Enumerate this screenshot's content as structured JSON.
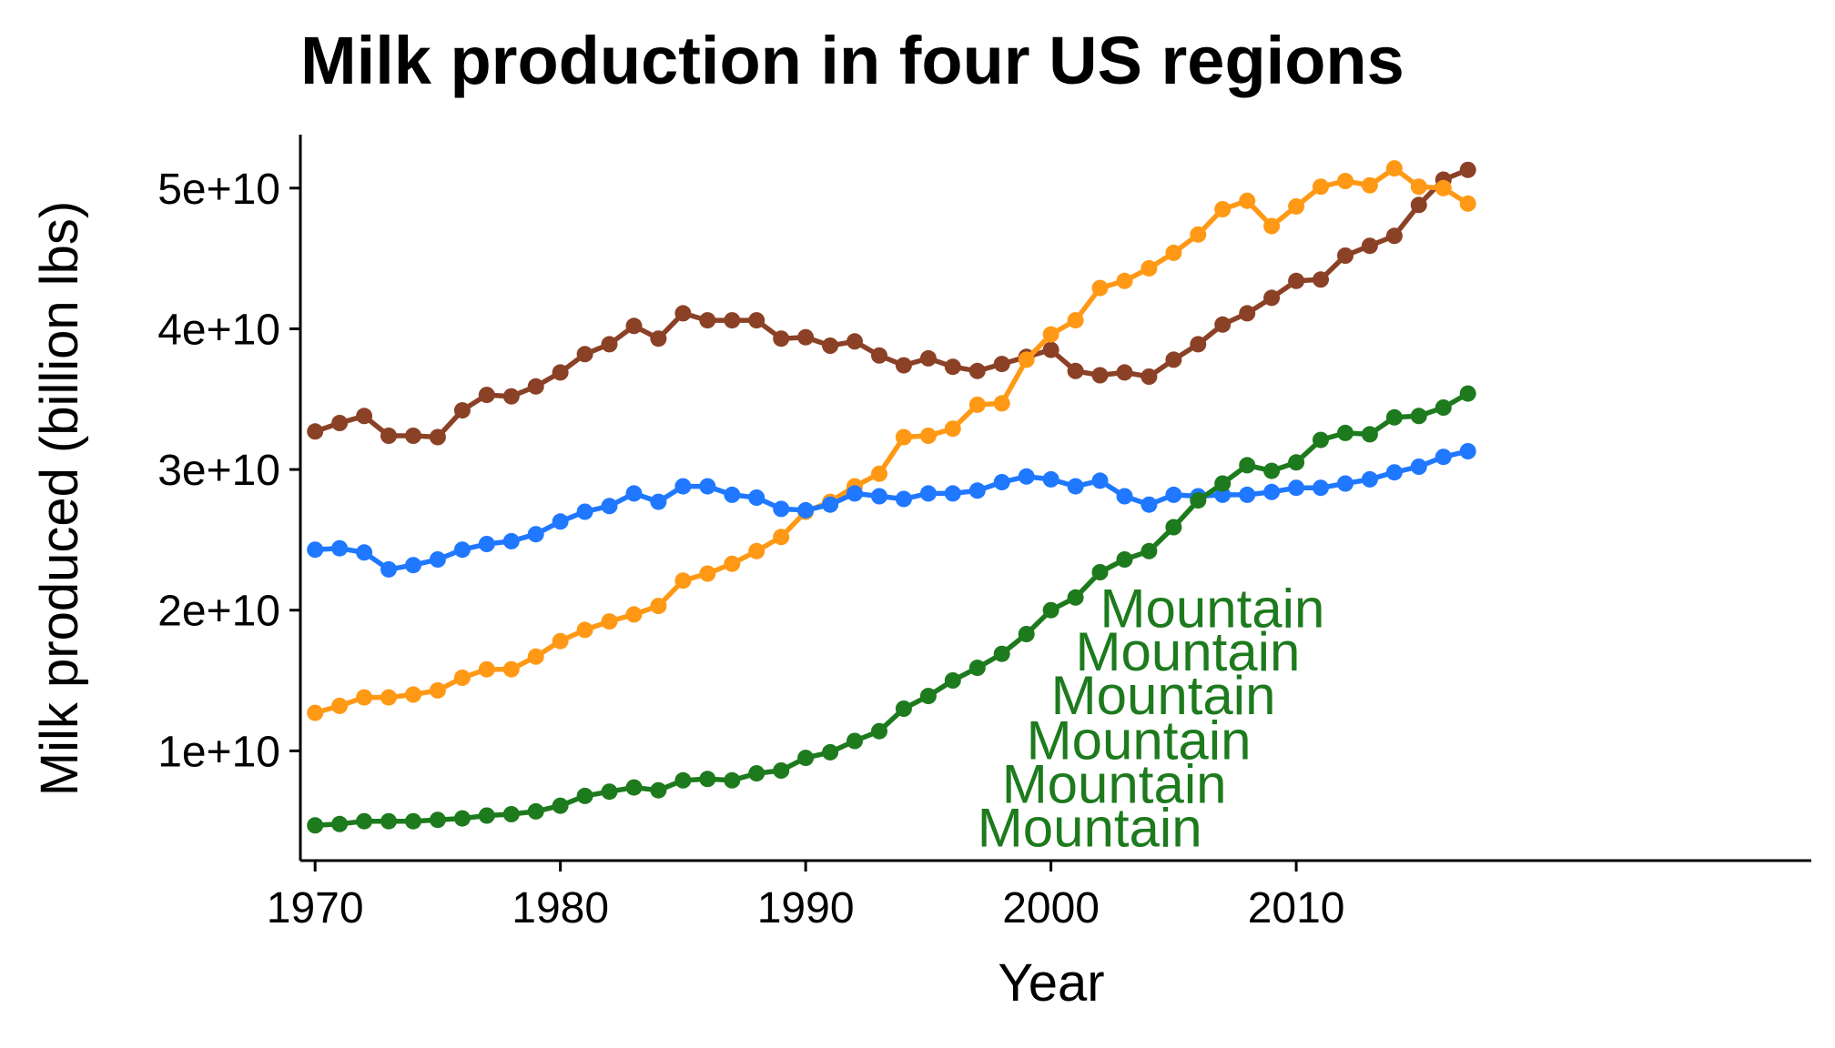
{
  "chart_data": {
    "type": "line",
    "title": "Milk production in four US regions",
    "xlabel": "Year",
    "ylabel": "Milk produced (billion lbs)",
    "xlim": [
      1969.4,
      2031
    ],
    "ylim": [
      2200000000,
      53800000000
    ],
    "x_ticks": [
      1970,
      1980,
      1990,
      2000,
      2010
    ],
    "x_tick_labels": [
      "1970",
      "1980",
      "1990",
      "2000",
      "2010"
    ],
    "y_ticks": [
      10000000000,
      20000000000,
      30000000000,
      40000000000,
      50000000000
    ],
    "y_tick_labels": [
      "1e+10",
      "2e+10",
      "3e+10",
      "4e+10",
      "5e+10"
    ],
    "grid": false,
    "legend": "none",
    "x": [
      1970,
      1971,
      1972,
      1973,
      1974,
      1975,
      1976,
      1977,
      1978,
      1979,
      1980,
      1981,
      1982,
      1983,
      1984,
      1985,
      1986,
      1987,
      1988,
      1989,
      1990,
      1991,
      1992,
      1993,
      1994,
      1995,
      1996,
      1997,
      1998,
      1999,
      2000,
      2001,
      2002,
      2003,
      2004,
      2005,
      2006,
      2007,
      2008,
      2009,
      2010,
      2011,
      2012,
      2013,
      2014,
      2015,
      2016,
      2017
    ],
    "series": [
      {
        "color": "#8B4126",
        "values": [
          32700000000.0,
          33300000000.0,
          33800000000.0,
          32400000000.0,
          32400000000.0,
          32300000000.0,
          34200000000.0,
          35300000000.0,
          35200000000.0,
          35900000000.0,
          36900000000.0,
          38200000000.0,
          38900000000.0,
          40200000000.0,
          39300000000.0,
          41100000000.0,
          40600000000.0,
          40600000000.0,
          40600000000.0,
          39300000000.0,
          39400000000.0,
          38800000000.0,
          39100000000.0,
          38100000000.0,
          37400000000.0,
          37900000000.0,
          37300000000.0,
          37000000000.0,
          37500000000.0,
          38000000000.0,
          38500000000.0,
          37000000000.0,
          36700000000.0,
          36900000000.0,
          36600000000.0,
          37800000000.0,
          38900000000.0,
          40300000000.0,
          41100000000.0,
          42200000000.0,
          43400000000.0,
          43500000000.0,
          45200000000.0,
          45900000000.0,
          46600000000.0,
          48800000000.0,
          50600000000.0,
          51300000000.0
        ]
      },
      {
        "color": "#FF9915",
        "values": [
          12700000000.0,
          13200000000.0,
          13800000000.0,
          13800000000.0,
          14000000000.0,
          14300000000.0,
          15200000000.0,
          15800000000.0,
          15800000000.0,
          16700000000.0,
          17800000000.0,
          18600000000.0,
          19200000000.0,
          19700000000.0,
          20300000000.0,
          22100000000.0,
          22600000000.0,
          23300000000.0,
          24200000000.0,
          25200000000.0,
          27000000000.0,
          27700000000.0,
          28800000000.0,
          29700000000.0,
          32300000000.0,
          32400000000.0,
          32900000000.0,
          34600000000.0,
          34700000000.0,
          37800000000.0,
          39600000000.0,
          40600000000.0,
          42900000000.0,
          43400000000.0,
          44300000000.0,
          45400000000.0,
          46700000000.0,
          48500000000.0,
          49100000000.0,
          47300000000.0,
          48700000000.0,
          50100000000.0,
          50500000000.0,
          50200000000.0,
          51400000000.0,
          50100000000.0,
          50000000000.0,
          48900000000.0
        ]
      },
      {
        "color": "#1F78FF",
        "values": [
          24300000000.0,
          24400000000.0,
          24100000000.0,
          22900000000.0,
          23200000000.0,
          23600000000.0,
          24300000000.0,
          24700000000.0,
          24900000000.0,
          25400000000.0,
          26300000000.0,
          27000000000.0,
          27400000000.0,
          28300000000.0,
          27700000000.0,
          28800000000.0,
          28800000000.0,
          28200000000.0,
          28000000000.0,
          27200000000.0,
          27100000000.0,
          27500000000.0,
          28300000000.0,
          28100000000.0,
          27900000000.0,
          28300000000.0,
          28300000000.0,
          28500000000.0,
          29100000000.0,
          29500000000.0,
          29300000000.0,
          28800000000.0,
          29200000000.0,
          28100000000.0,
          27500000000.0,
          28200000000.0,
          28100000000.0,
          28200000000.0,
          28200000000.0,
          28400000000.0,
          28700000000.0,
          28700000000.0,
          29000000000.0,
          29300000000.0,
          29800000000.0,
          30200000000.0,
          30900000000.0,
          31300000000.0
        ]
      },
      {
        "color": "#1D7A1D",
        "values": [
          4700000000.0,
          4800000000.0,
          5000000000.0,
          5000000000.0,
          5000000000.0,
          5100000000.0,
          5200000000.0,
          5400000000.0,
          5500000000.0,
          5700000000.0,
          6100000000.0,
          6800000000.0,
          7100000000.0,
          7400000000.0,
          7200000000.0,
          7900000000.0,
          8000000000.0,
          7900000000.0,
          8400000000.0,
          8600000000.0,
          9500000000.0,
          9900000000.0,
          10700000000.0,
          11400000000.0,
          13000000000.0,
          13900000000.0,
          15000000000.0,
          15900000000.0,
          16900000000.0,
          18300000000.0,
          20000000000.0,
          20900000000.0,
          22700000000.0,
          23600000000.0,
          24200000000.0,
          25900000000.0,
          27800000000.0,
          29000000000.0,
          30300000000.0,
          29900000000.0,
          30500000000.0,
          32100000000.0,
          32600000000.0,
          32500000000.0,
          33700000000.0,
          33800000000.0,
          34400000000.0,
          35400000000.0
        ]
      }
    ],
    "annotations": [
      {
        "text": "Mountain",
        "x": 1997,
        "y": 3200000000.0,
        "color": "#1D7A1D"
      },
      {
        "text": "Mountain",
        "x": 1998,
        "y": 6300000000.0,
        "color": "#1D7A1D"
      },
      {
        "text": "Mountain",
        "x": 1999,
        "y": 9400000000.0,
        "color": "#1D7A1D"
      },
      {
        "text": "Mountain",
        "x": 2000,
        "y": 12600000000.0,
        "color": "#1D7A1D"
      },
      {
        "text": "Mountain",
        "x": 2001,
        "y": 15700000000.0,
        "color": "#1D7A1D"
      },
      {
        "text": "Mountain",
        "x": 2002,
        "y": 18800000000.0,
        "color": "#1D7A1D"
      }
    ]
  }
}
